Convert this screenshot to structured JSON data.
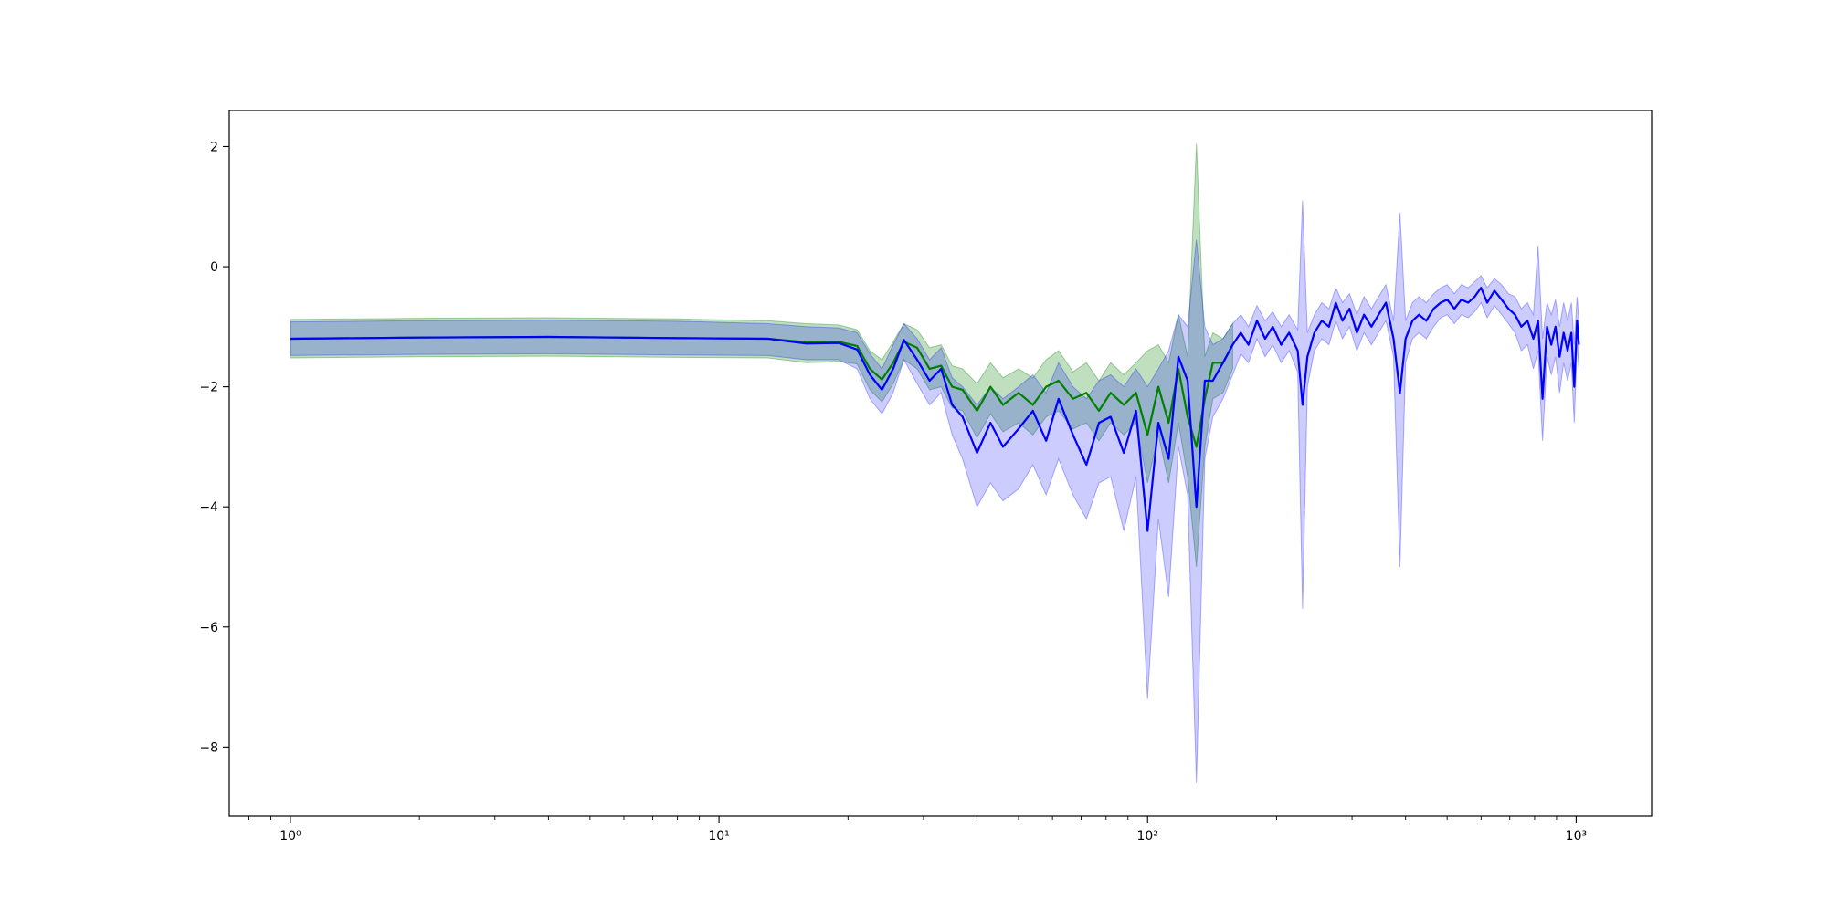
{
  "chart_data": {
    "type": "line",
    "title": "",
    "xlabel": "",
    "ylabel": "",
    "xscale": "log",
    "xlim": [
      0.72,
      1500
    ],
    "ylim": [
      -9.15,
      2.6
    ],
    "grid": false,
    "legend": "none",
    "x_ticks": [
      {
        "value": 1,
        "label": "10⁰"
      },
      {
        "value": 10,
        "label": "10¹"
      },
      {
        "value": 100,
        "label": "10²"
      },
      {
        "value": 1000,
        "label": "10³"
      }
    ],
    "y_ticks": [
      {
        "value": 2,
        "label": "2"
      },
      {
        "value": 0,
        "label": "0"
      },
      {
        "value": -2,
        "label": "−2"
      },
      {
        "value": -4,
        "label": "−4"
      },
      {
        "value": -6,
        "label": "−6"
      },
      {
        "value": -8,
        "label": "−8"
      }
    ],
    "series": [
      {
        "color": "#008000",
        "band_color": "#008000",
        "band_opacity": 0.25,
        "points": [
          {
            "x": 1,
            "y": -1.2,
            "lo": -1.52,
            "hi": -0.88
          },
          {
            "x": 2,
            "y": -1.18,
            "lo": -1.5,
            "hi": -0.86
          },
          {
            "x": 4,
            "y": -1.17,
            "lo": -1.49,
            "hi": -0.85
          },
          {
            "x": 8,
            "y": -1.19,
            "lo": -1.51,
            "hi": -0.87
          },
          {
            "x": 13,
            "y": -1.2,
            "lo": -1.52,
            "hi": -0.9
          },
          {
            "x": 16,
            "y": -1.26,
            "lo": -1.6,
            "hi": -0.95
          },
          {
            "x": 19,
            "y": -1.25,
            "lo": -1.58,
            "hi": -0.97
          },
          {
            "x": 21,
            "y": -1.32,
            "lo": -1.62,
            "hi": -1.05
          },
          {
            "x": 22.5,
            "y": -1.7,
            "lo": -2.05,
            "hi": -1.4
          },
          {
            "x": 24,
            "y": -1.88,
            "lo": -2.25,
            "hi": -1.55
          },
          {
            "x": 25.5,
            "y": -1.6,
            "lo": -1.95,
            "hi": -1.25
          },
          {
            "x": 27,
            "y": -1.25,
            "lo": -1.55,
            "hi": -0.95
          },
          {
            "x": 29,
            "y": -1.35,
            "lo": -1.7,
            "hi": -1.05
          },
          {
            "x": 31,
            "y": -1.7,
            "lo": -2.05,
            "hi": -1.35
          },
          {
            "x": 33,
            "y": -1.65,
            "lo": -2.0,
            "hi": -1.3
          },
          {
            "x": 35,
            "y": -2.0,
            "lo": -2.35,
            "hi": -1.65
          },
          {
            "x": 37,
            "y": -2.05,
            "lo": -2.4,
            "hi": -1.7
          },
          {
            "x": 40,
            "y": -2.4,
            "lo": -2.85,
            "hi": -1.95
          },
          {
            "x": 43,
            "y": -2.0,
            "lo": -2.45,
            "hi": -1.6
          },
          {
            "x": 46,
            "y": -2.3,
            "lo": -2.75,
            "hi": -1.85
          },
          {
            "x": 50,
            "y": -2.1,
            "lo": -2.6,
            "hi": -1.7
          },
          {
            "x": 54,
            "y": -2.3,
            "lo": -2.8,
            "hi": -1.85
          },
          {
            "x": 58,
            "y": -2.0,
            "lo": -2.5,
            "hi": -1.55
          },
          {
            "x": 62,
            "y": -1.9,
            "lo": -2.4,
            "hi": -1.4
          },
          {
            "x": 67,
            "y": -2.2,
            "lo": -2.7,
            "hi": -1.75
          },
          {
            "x": 72,
            "y": -2.1,
            "lo": -2.6,
            "hi": -1.6
          },
          {
            "x": 77,
            "y": -2.4,
            "lo": -2.9,
            "hi": -1.9
          },
          {
            "x": 82,
            "y": -2.1,
            "lo": -2.6,
            "hi": -1.6
          },
          {
            "x": 88,
            "y": -2.3,
            "lo": -2.8,
            "hi": -1.8
          },
          {
            "x": 94,
            "y": -2.1,
            "lo": -2.6,
            "hi": -1.6
          },
          {
            "x": 100,
            "y": -2.8,
            "lo": -3.6,
            "hi": -1.4
          },
          {
            "x": 106,
            "y": -2.0,
            "lo": -2.8,
            "hi": -1.3
          },
          {
            "x": 112,
            "y": -2.6,
            "lo": -3.6,
            "hi": -1.6
          },
          {
            "x": 118,
            "y": -1.7,
            "lo": -2.6,
            "hi": -0.8
          },
          {
            "x": 124,
            "y": -2.5,
            "lo": -3.5,
            "hi": -1.5
          },
          {
            "x": 130,
            "y": -3.0,
            "lo": -5.0,
            "hi": 2.05
          },
          {
            "x": 136,
            "y": -2.2,
            "lo": -3.0,
            "hi": -1.5
          },
          {
            "x": 142,
            "y": -1.6,
            "lo": -2.2,
            "hi": -1.1
          },
          {
            "x": 150,
            "y": -1.6,
            "lo": -2.1,
            "hi": -1.2
          },
          {
            "x": 158,
            "y": -1.3,
            "lo": -1.7,
            "hi": -0.95
          }
        ]
      },
      {
        "color": "#0000ff",
        "band_color": "#0000ff",
        "band_opacity": 0.2,
        "points": [
          {
            "x": 1,
            "y": -1.2,
            "lo": -1.48,
            "hi": -0.92
          },
          {
            "x": 2,
            "y": -1.18,
            "lo": -1.46,
            "hi": -0.9
          },
          {
            "x": 4,
            "y": -1.17,
            "lo": -1.45,
            "hi": -0.89
          },
          {
            "x": 8,
            "y": -1.19,
            "lo": -1.47,
            "hi": -0.91
          },
          {
            "x": 13,
            "y": -1.2,
            "lo": -1.48,
            "hi": -0.95
          },
          {
            "x": 16,
            "y": -1.28,
            "lo": -1.55,
            "hi": -1.0
          },
          {
            "x": 19,
            "y": -1.27,
            "lo": -1.55,
            "hi": -1.02
          },
          {
            "x": 21,
            "y": -1.38,
            "lo": -1.7,
            "hi": -1.1
          },
          {
            "x": 22.5,
            "y": -1.8,
            "lo": -2.2,
            "hi": -1.45
          },
          {
            "x": 24,
            "y": -2.05,
            "lo": -2.45,
            "hi": -1.7
          },
          {
            "x": 25.5,
            "y": -1.7,
            "lo": -2.1,
            "hi": -1.3
          },
          {
            "x": 27,
            "y": -1.22,
            "lo": -1.55,
            "hi": -0.95
          },
          {
            "x": 29,
            "y": -1.55,
            "lo": -1.95,
            "hi": -1.2
          },
          {
            "x": 31,
            "y": -1.9,
            "lo": -2.3,
            "hi": -1.55
          },
          {
            "x": 33,
            "y": -1.7,
            "lo": -2.1,
            "hi": -1.35
          },
          {
            "x": 35,
            "y": -2.3,
            "lo": -2.8,
            "hi": -1.85
          },
          {
            "x": 37,
            "y": -2.5,
            "lo": -3.2,
            "hi": -2.0
          },
          {
            "x": 40,
            "y": -3.1,
            "lo": -4.0,
            "hi": -2.3
          },
          {
            "x": 43,
            "y": -2.6,
            "lo": -3.6,
            "hi": -2.0
          },
          {
            "x": 46,
            "y": -3.0,
            "lo": -3.9,
            "hi": -2.2
          },
          {
            "x": 50,
            "y": -2.7,
            "lo": -3.7,
            "hi": -2.0
          },
          {
            "x": 54,
            "y": -2.4,
            "lo": -3.3,
            "hi": -1.8
          },
          {
            "x": 58,
            "y": -2.9,
            "lo": -3.8,
            "hi": -2.1
          },
          {
            "x": 62,
            "y": -2.2,
            "lo": -3.2,
            "hi": -1.6
          },
          {
            "x": 67,
            "y": -2.8,
            "lo": -3.8,
            "hi": -2.0
          },
          {
            "x": 72,
            "y": -3.3,
            "lo": -4.2,
            "hi": -2.2
          },
          {
            "x": 77,
            "y": -2.6,
            "lo": -3.6,
            "hi": -1.9
          },
          {
            "x": 82,
            "y": -2.5,
            "lo": -3.5,
            "hi": -1.8
          },
          {
            "x": 88,
            "y": -3.1,
            "lo": -4.4,
            "hi": -2.0
          },
          {
            "x": 94,
            "y": -2.4,
            "lo": -3.5,
            "hi": -1.7
          },
          {
            "x": 100,
            "y": -4.4,
            "lo": -7.2,
            "hi": -2.0
          },
          {
            "x": 106,
            "y": -2.6,
            "lo": -4.2,
            "hi": -1.7
          },
          {
            "x": 112,
            "y": -3.2,
            "lo": -5.5,
            "hi": -1.4
          },
          {
            "x": 118,
            "y": -1.5,
            "lo": -3.0,
            "hi": -0.8
          },
          {
            "x": 124,
            "y": -1.9,
            "lo": -3.8,
            "hi": -1.0
          },
          {
            "x": 130,
            "y": -4.0,
            "lo": -8.6,
            "hi": 0.45
          },
          {
            "x": 136,
            "y": -1.9,
            "lo": -3.2,
            "hi": -1.0
          },
          {
            "x": 142,
            "y": -1.9,
            "lo": -2.5,
            "hi": -1.3
          },
          {
            "x": 150,
            "y": -1.6,
            "lo": -2.2,
            "hi": -1.2
          },
          {
            "x": 158,
            "y": -1.3,
            "lo": -1.8,
            "hi": -0.95
          },
          {
            "x": 165,
            "y": -1.1,
            "lo": -1.45,
            "hi": -0.8
          },
          {
            "x": 172,
            "y": -1.3,
            "lo": -1.6,
            "hi": -1.0
          },
          {
            "x": 180,
            "y": -0.9,
            "lo": -1.2,
            "hi": -0.65
          },
          {
            "x": 188,
            "y": -1.2,
            "lo": -1.5,
            "hi": -0.9
          },
          {
            "x": 196,
            "y": -1.0,
            "lo": -1.3,
            "hi": -0.75
          },
          {
            "x": 205,
            "y": -1.3,
            "lo": -1.6,
            "hi": -1.0
          },
          {
            "x": 214,
            "y": -1.1,
            "lo": -1.4,
            "hi": -0.8
          },
          {
            "x": 224,
            "y": -1.4,
            "lo": -1.75,
            "hi": -1.05
          },
          {
            "x": 230,
            "y": -2.3,
            "lo": -5.7,
            "hi": 1.1
          },
          {
            "x": 236,
            "y": -1.5,
            "lo": -2.0,
            "hi": -1.1
          },
          {
            "x": 245,
            "y": -1.1,
            "lo": -1.4,
            "hi": -0.8
          },
          {
            "x": 255,
            "y": -0.9,
            "lo": -1.2,
            "hi": -0.6
          },
          {
            "x": 265,
            "y": -1.0,
            "lo": -1.3,
            "hi": -0.7
          },
          {
            "x": 275,
            "y": -0.6,
            "lo": -0.9,
            "hi": -0.35
          },
          {
            "x": 285,
            "y": -0.9,
            "lo": -1.2,
            "hi": -0.6
          },
          {
            "x": 296,
            "y": -0.7,
            "lo": -1.0,
            "hi": -0.45
          },
          {
            "x": 308,
            "y": -1.1,
            "lo": -1.4,
            "hi": -0.8
          },
          {
            "x": 320,
            "y": -0.8,
            "lo": -1.1,
            "hi": -0.5
          },
          {
            "x": 333,
            "y": -1.0,
            "lo": -1.3,
            "hi": -0.7
          },
          {
            "x": 346,
            "y": -0.8,
            "lo": -1.1,
            "hi": -0.5
          },
          {
            "x": 360,
            "y": -0.6,
            "lo": -0.9,
            "hi": -0.3
          },
          {
            "x": 375,
            "y": -1.2,
            "lo": -1.5,
            "hi": -0.9
          },
          {
            "x": 388,
            "y": -2.1,
            "lo": -5.0,
            "hi": 0.9
          },
          {
            "x": 400,
            "y": -1.2,
            "lo": -1.6,
            "hi": -0.9
          },
          {
            "x": 415,
            "y": -0.9,
            "lo": -1.2,
            "hi": -0.6
          },
          {
            "x": 430,
            "y": -0.8,
            "lo": -1.1,
            "hi": -0.5
          },
          {
            "x": 447,
            "y": -0.9,
            "lo": -1.2,
            "hi": -0.6
          },
          {
            "x": 465,
            "y": -0.7,
            "lo": -1.0,
            "hi": -0.45
          },
          {
            "x": 483,
            "y": -0.6,
            "lo": -0.85,
            "hi": -0.35
          },
          {
            "x": 500,
            "y": -0.55,
            "lo": -0.8,
            "hi": -0.3
          },
          {
            "x": 520,
            "y": -0.7,
            "lo": -0.95,
            "hi": -0.45
          },
          {
            "x": 540,
            "y": -0.55,
            "lo": -0.8,
            "hi": -0.3
          },
          {
            "x": 560,
            "y": -0.6,
            "lo": -0.85,
            "hi": -0.35
          },
          {
            "x": 580,
            "y": -0.5,
            "lo": -0.75,
            "hi": -0.25
          },
          {
            "x": 600,
            "y": -0.35,
            "lo": -0.6,
            "hi": -0.15
          },
          {
            "x": 620,
            "y": -0.6,
            "lo": -0.85,
            "hi": -0.35
          },
          {
            "x": 645,
            "y": -0.4,
            "lo": -0.65,
            "hi": -0.2
          },
          {
            "x": 670,
            "y": -0.55,
            "lo": -0.8,
            "hi": -0.3
          },
          {
            "x": 695,
            "y": -0.7,
            "lo": -0.95,
            "hi": -0.45
          },
          {
            "x": 720,
            "y": -0.8,
            "lo": -1.1,
            "hi": -0.5
          },
          {
            "x": 745,
            "y": -1.0,
            "lo": -1.4,
            "hi": -0.7
          },
          {
            "x": 770,
            "y": -0.9,
            "lo": -1.3,
            "hi": -0.6
          },
          {
            "x": 795,
            "y": -1.2,
            "lo": -1.7,
            "hi": -0.8
          },
          {
            "x": 815,
            "y": -0.9,
            "lo": -1.4,
            "hi": 0.35
          },
          {
            "x": 835,
            "y": -2.2,
            "lo": -2.9,
            "hi": -1.2
          },
          {
            "x": 855,
            "y": -1.0,
            "lo": -1.5,
            "hi": -0.6
          },
          {
            "x": 875,
            "y": -1.3,
            "lo": -1.8,
            "hi": -0.8
          },
          {
            "x": 895,
            "y": -1.0,
            "lo": -1.5,
            "hi": -0.55
          },
          {
            "x": 915,
            "y": -1.5,
            "lo": -2.1,
            "hi": -1.0
          },
          {
            "x": 935,
            "y": -1.1,
            "lo": -1.6,
            "hi": -0.6
          },
          {
            "x": 955,
            "y": -1.4,
            "lo": -1.9,
            "hi": -0.9
          },
          {
            "x": 975,
            "y": -1.1,
            "lo": -1.6,
            "hi": -0.6
          },
          {
            "x": 990,
            "y": -2.0,
            "lo": -2.6,
            "hi": -1.3
          },
          {
            "x": 1005,
            "y": -0.9,
            "lo": -1.3,
            "hi": -0.5
          },
          {
            "x": 1015,
            "y": -1.3,
            "lo": -1.7,
            "hi": -0.9
          }
        ]
      }
    ]
  }
}
